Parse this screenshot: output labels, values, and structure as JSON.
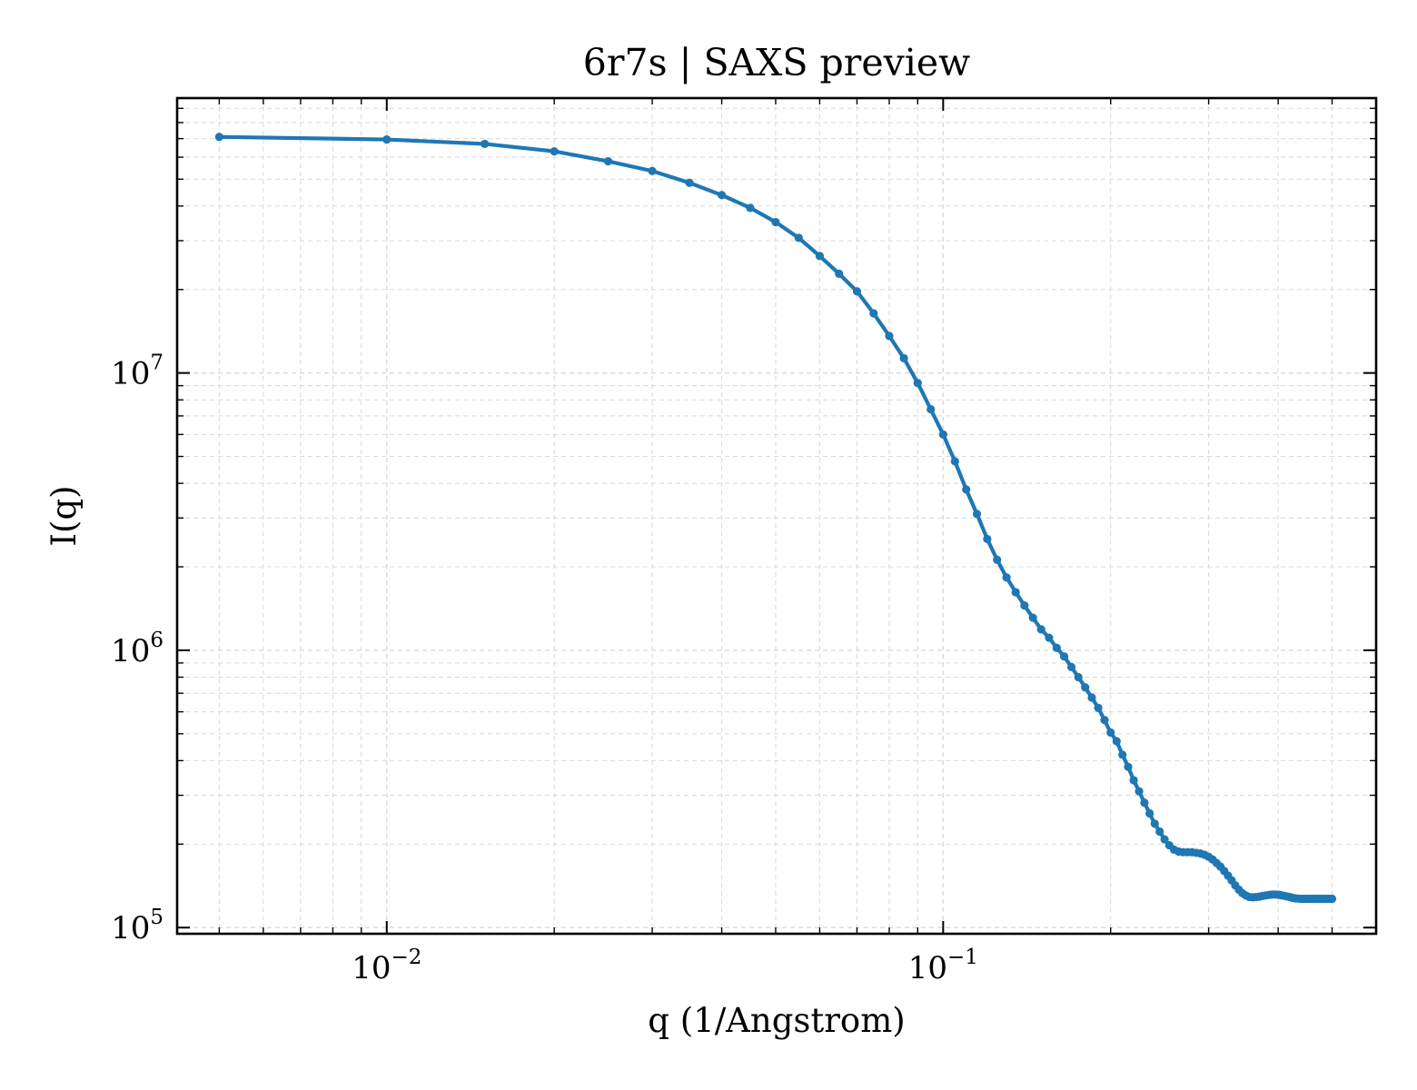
{
  "chart_data": {
    "type": "line",
    "title": "6r7s | SAXS preview",
    "xlabel": "q (1/Angstrom)",
    "ylabel": "I(q)",
    "xscale": "log",
    "yscale": "log",
    "xlim": [
      0.0042,
      0.6
    ],
    "ylim": [
      95000,
      98000000
    ],
    "grid": true,
    "x_ticks": [
      {
        "base": "10",
        "exp": "−2",
        "value": 0.01
      },
      {
        "base": "10",
        "exp": "−1",
        "value": 0.1
      }
    ],
    "y_ticks": [
      {
        "base": "10",
        "exp": "5",
        "value": 100000
      },
      {
        "base": "10",
        "exp": "6",
        "value": 1000000
      },
      {
        "base": "10",
        "exp": "7",
        "value": 10000000
      }
    ],
    "colors": {
      "line": "#1f77b4",
      "grid": "#d9d9d9",
      "axes": "#000000"
    },
    "series": [
      {
        "x": [
          0.005,
          0.01,
          0.015,
          0.02,
          0.025,
          0.03,
          0.035,
          0.04,
          0.045,
          0.05,
          0.055,
          0.06,
          0.065,
          0.07,
          0.075,
          0.08,
          0.085,
          0.09,
          0.095,
          0.1,
          0.105,
          0.11,
          0.115,
          0.12,
          0.125,
          0.13,
          0.135,
          0.14,
          0.145,
          0.15,
          0.155,
          0.16,
          0.165,
          0.17,
          0.175,
          0.18,
          0.185,
          0.19,
          0.195,
          0.2,
          0.205,
          0.21,
          0.215,
          0.22,
          0.225,
          0.23,
          0.235,
          0.24,
          0.245,
          0.25,
          0.255,
          0.26,
          0.265,
          0.27,
          0.275,
          0.28,
          0.285,
          0.29,
          0.295,
          0.3,
          0.305,
          0.31,
          0.315,
          0.32,
          0.325,
          0.33,
          0.335,
          0.34,
          0.345,
          0.35,
          0.355,
          0.36,
          0.365,
          0.37,
          0.375,
          0.38,
          0.385,
          0.39,
          0.395,
          0.4,
          0.405,
          0.41,
          0.415,
          0.42,
          0.425,
          0.43,
          0.435,
          0.44,
          0.445,
          0.45,
          0.455,
          0.46,
          0.465,
          0.47,
          0.475,
          0.48,
          0.485,
          0.49,
          0.495,
          0.5
        ],
        "y": [
          71000000,
          69500000,
          67000000,
          63000000,
          58000000,
          53500000,
          48500000,
          43800000,
          39400000,
          35000000,
          30700000,
          26400000,
          22800000,
          19700000,
          16400000,
          13600000,
          11300000,
          9200000,
          7400000,
          6000000,
          4800000,
          3800000,
          3100000,
          2520000,
          2120000,
          1830000,
          1620000,
          1450000,
          1310000,
          1190000,
          1110000,
          1020000,
          950000,
          870000,
          800000,
          735000,
          675000,
          620000,
          560000,
          505000,
          470000,
          420000,
          380000,
          340000,
          310000,
          282000,
          258000,
          237000,
          222000,
          208000,
          198000,
          191000,
          188000,
          187000,
          187000,
          187000,
          186000,
          185000,
          183000,
          180000,
          176000,
          171000,
          166000,
          160000,
          154000,
          148000,
          142000,
          137000,
          133000,
          130500,
          129000,
          128600,
          128800,
          129300,
          130000,
          130600,
          131200,
          131500,
          131600,
          131400,
          130800,
          130200,
          129500,
          128800,
          128000,
          127500,
          127200,
          127000,
          127000,
          127000,
          127000,
          127000,
          127000,
          127000,
          127000,
          127000,
          127000,
          127000,
          127000,
          127000
        ]
      }
    ]
  }
}
